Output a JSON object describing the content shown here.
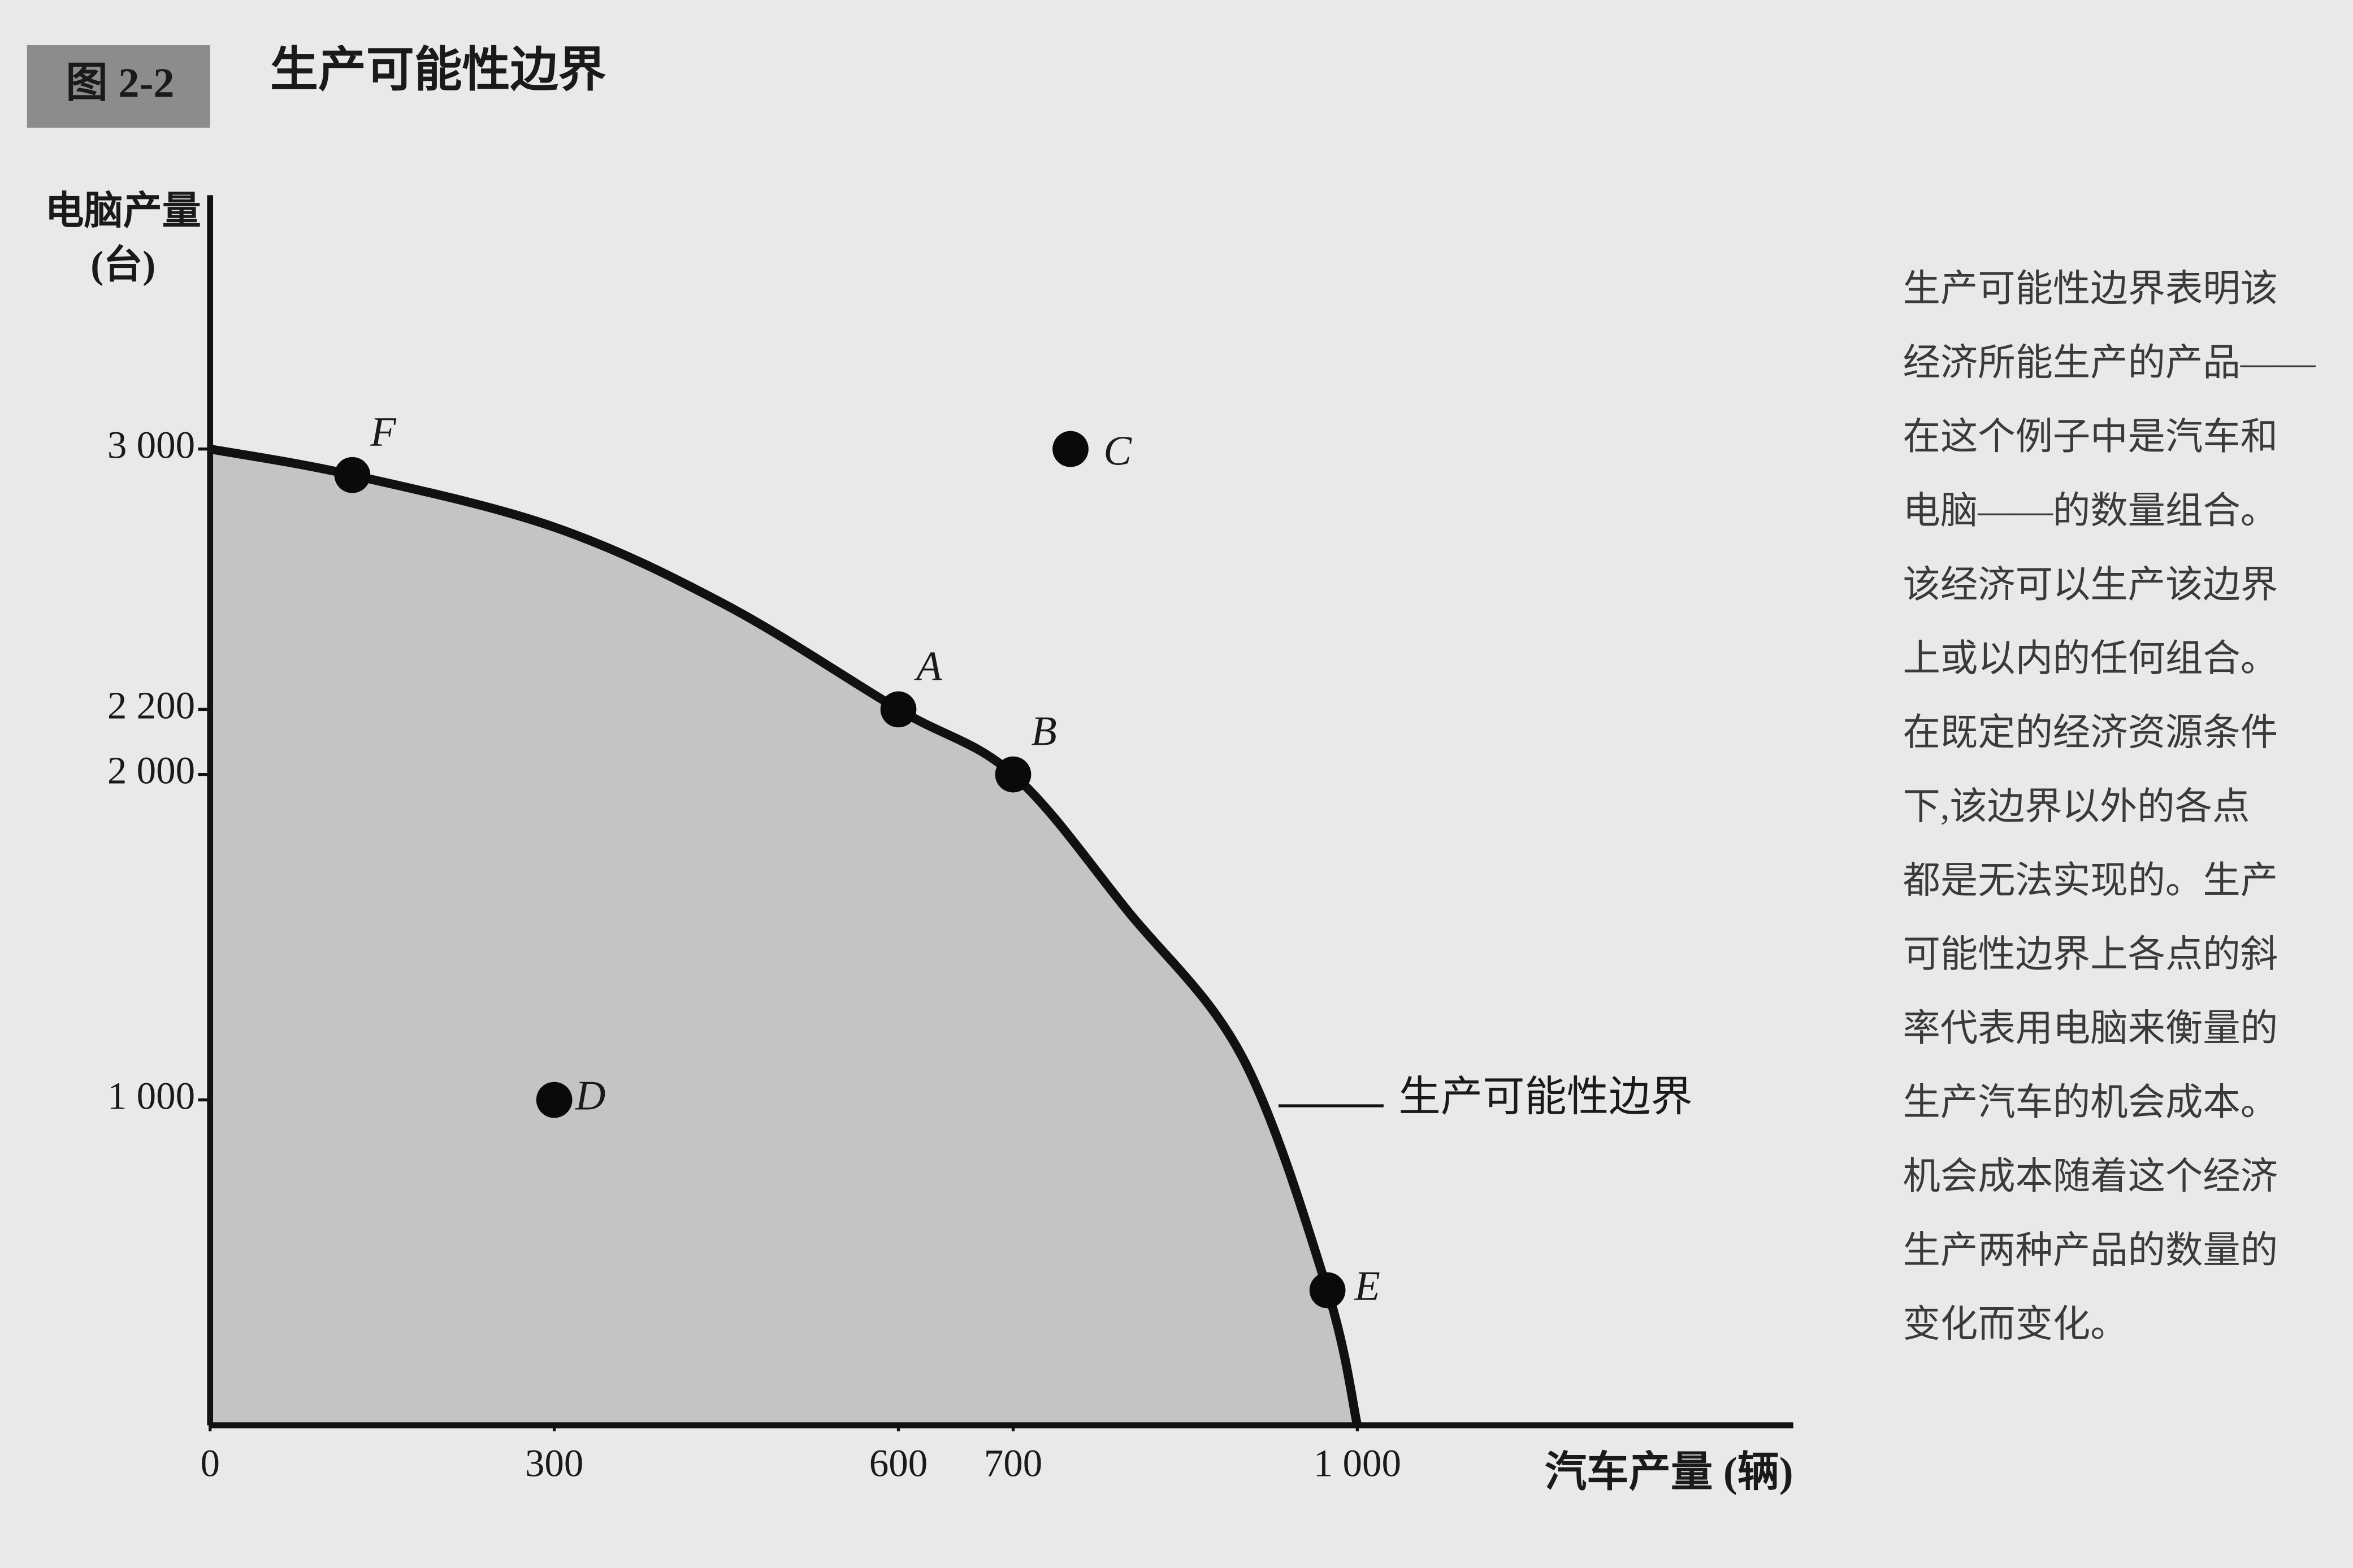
{
  "figure_label": "图 2-2",
  "title": "生产可能性边界",
  "note_lines": [
    "生产可能性边界表明该",
    "经济所能生产的产品——",
    "在这个例子中是汽车和",
    "电脑——的数量组合。",
    "该经济可以生产该边界",
    "上或以内的任何组合。",
    "在既定的经济资源条件",
    "下,该边界以外的各点",
    "都是无法实现的。生产",
    "可能性边界上各点的斜",
    "率代表用电脑来衡量的",
    "生产汽车的机会成本。",
    "机会成本随着这个经济",
    "生产两种产品的数量的",
    "变化而变化。"
  ],
  "chart_data": {
    "type": "line",
    "x_label": "汽车产量 (辆)",
    "y_label": [
      "电脑产量",
      "(台)"
    ],
    "xlim": [
      0,
      1380
    ],
    "ylim": [
      0,
      3780
    ],
    "xticks": [
      0,
      300,
      600,
      700,
      {
        "value": 1000,
        "label": "1 000"
      }
    ],
    "yticks": [
      {
        "value": 1000,
        "label": "1 000"
      },
      {
        "value": 2000,
        "label": "2 000"
      },
      {
        "value": 2200,
        "label": "2 200"
      },
      {
        "value": 3000,
        "label": "3 000"
      }
    ],
    "series": [
      {
        "name": "生产可能性边界",
        "color": "#111111",
        "fill": "#c4c4c4",
        "x": [
          0,
          124,
          300,
          450,
          600,
          700,
          800,
          900,
          974,
          1000
        ],
        "values": [
          3000,
          2920,
          2760,
          2520,
          2200,
          2000,
          1580,
          1130,
          415,
          0
        ]
      }
    ],
    "points": [
      {
        "label": "F",
        "x": 124,
        "y": 2920,
        "guide": false
      },
      {
        "label": "A",
        "x": 600,
        "y": 2200,
        "guide": true
      },
      {
        "label": "B",
        "x": 700,
        "y": 2000,
        "guide": true
      },
      {
        "label": "C",
        "x": 750,
        "y": 3000,
        "guide": false
      },
      {
        "label": "D",
        "x": 300,
        "y": 1000,
        "guide": true
      },
      {
        "label": "E",
        "x": 974,
        "y": 415,
        "guide": false
      }
    ]
  }
}
